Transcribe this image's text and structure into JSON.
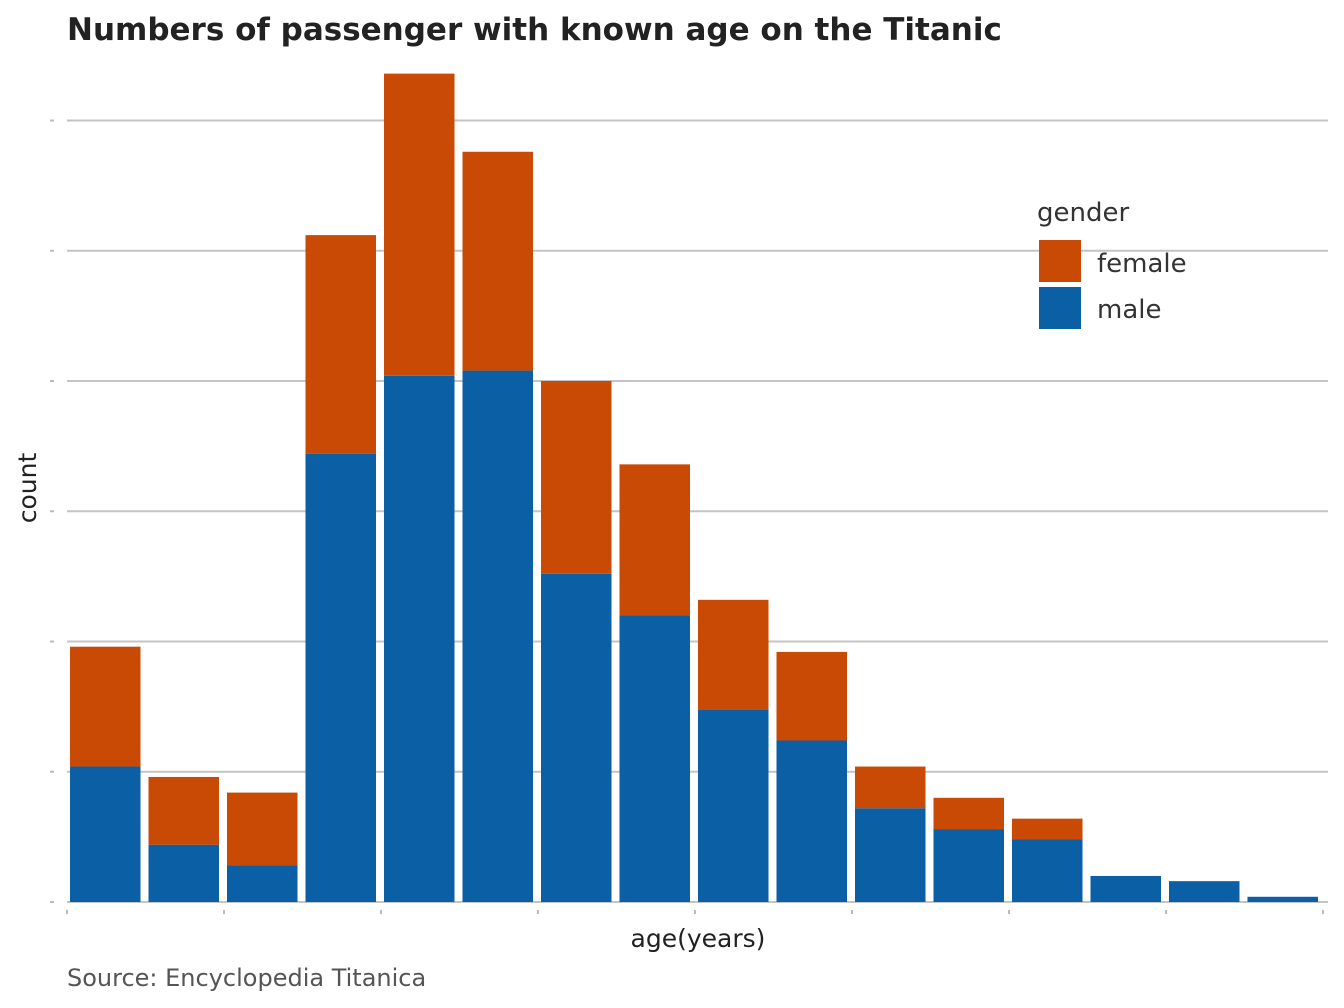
{
  "chart_data": {
    "type": "bar",
    "stacked": true,
    "title": "Numbers of passenger with known age on the Titanic",
    "xlabel": "age(years)",
    "ylabel": "count",
    "caption": "Source: Encyclopedia Titanica",
    "ylim": [
      0,
      165
    ],
    "yticks": [
      0,
      25,
      50,
      75,
      100,
      125,
      150
    ],
    "grid": true,
    "legend": {
      "title": "gender",
      "position": "top-right"
    },
    "bin_count": 16,
    "series": [
      {
        "name": "male",
        "color": "#0b5fa5",
        "values": [
          26,
          11,
          7,
          86,
          101,
          102,
          63,
          55,
          37,
          31,
          18,
          14,
          12,
          5,
          4,
          1
        ]
      },
      {
        "name": "female",
        "color": "#c94a05",
        "values": [
          23,
          13,
          14,
          42,
          58,
          42,
          37,
          29,
          21,
          17,
          8,
          6,
          4,
          0,
          0,
          0
        ]
      }
    ]
  }
}
